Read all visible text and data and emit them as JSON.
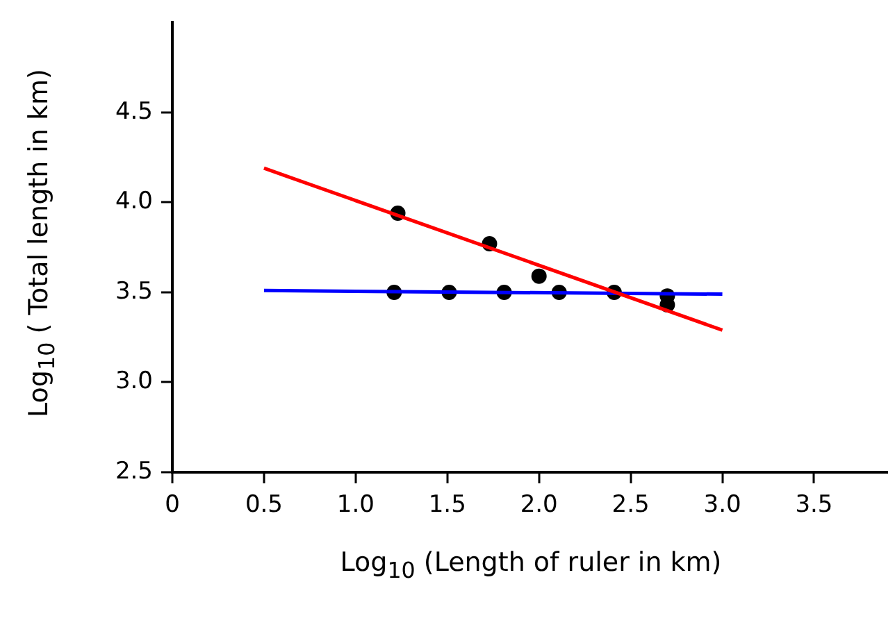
{
  "chart_data": {
    "type": "scatter",
    "xlabel": "Log$_{10}$ (Length of ruler in km)",
    "ylabel": "Log$_{10}$ ( Total length in km)",
    "xlim": [
      0,
      3.9
    ],
    "ylim": [
      2.5,
      5.0
    ],
    "xticks": [
      0,
      0.5,
      {
        "value": 1.0,
        "label": "1.0"
      },
      1.5,
      {
        "value": 2.0,
        "label": "2.0"
      },
      2.5,
      {
        "value": 3.0,
        "label": "3.0"
      },
      3.5
    ],
    "yticks": [
      2.5,
      {
        "value": 3.0,
        "label": "3.0"
      },
      3.5,
      {
        "value": 4.0,
        "label": "4.0"
      },
      4.5
    ],
    "grid": false,
    "legend": false,
    "marker": "circle",
    "series": [
      {
        "type": "line",
        "color": "#ff0000",
        "x": [
          0.5,
          3.0
        ],
        "values": [
          4.19,
          3.29
        ],
        "marker": "none"
      },
      {
        "type": "line",
        "color": "#0000ff",
        "x": [
          0.5,
          3.0
        ],
        "values": [
          3.51,
          3.49
        ],
        "marker": "none"
      },
      {
        "color": "#000000",
        "x": [
          1.21,
          1.51,
          1.81,
          2.11,
          2.41,
          2.7,
          1.23,
          1.73,
          2.0,
          2.7
        ],
        "values": [
          3.5,
          3.5,
          3.5,
          3.5,
          3.5,
          3.48,
          3.94,
          3.77,
          3.59,
          3.43
        ]
      }
    ]
  }
}
